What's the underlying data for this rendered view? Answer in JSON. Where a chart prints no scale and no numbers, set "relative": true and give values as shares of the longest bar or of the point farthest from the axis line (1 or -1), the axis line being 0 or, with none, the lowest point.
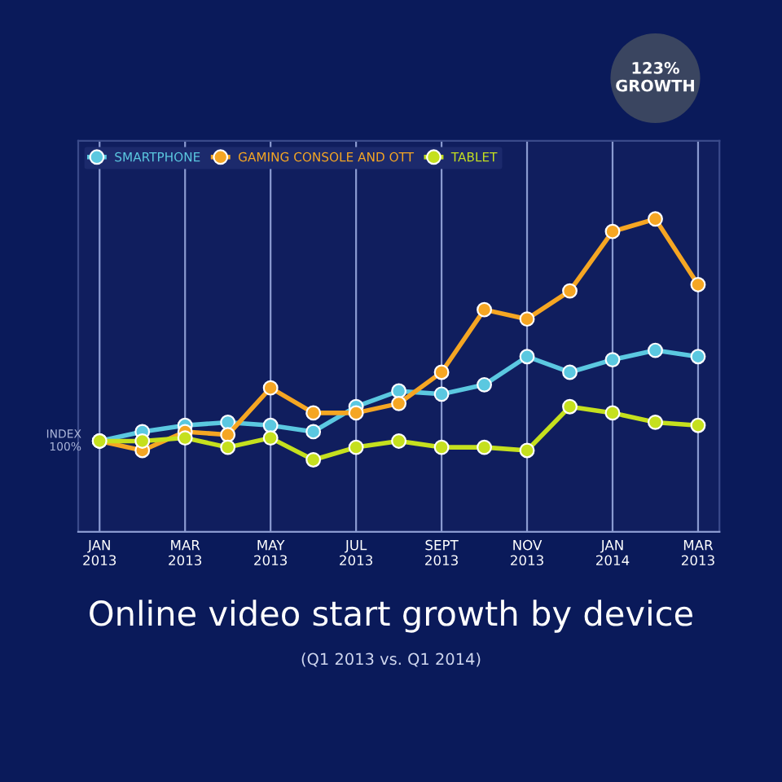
{
  "chart_data": {
    "type": "line",
    "title": "Online video start growth by device",
    "subtitle": "(Q1 2013 vs. Q1 2014)",
    "categories": [
      "JAN\n2013",
      null,
      "MAR\n2013",
      null,
      "MAY\n2013",
      null,
      "JUL\n2013",
      null,
      "SEPT\n2013",
      null,
      "NOV\n2013",
      null,
      "JAN\n2014",
      null,
      "MAR\n2013"
    ],
    "relative": true,
    "series": [
      {
        "name": "SMARTPHONE",
        "color": "#5bc8e0",
        "values": [
          0.29,
          0.32,
          0.34,
          0.35,
          0.34,
          0.32,
          0.4,
          0.45,
          0.44,
          0.47,
          0.56,
          0.51,
          0.55,
          0.58,
          0.56
        ]
      },
      {
        "name": "GAMING CONSOLE AND OTT",
        "color": "#f5a623",
        "values": [
          0.29,
          0.26,
          0.32,
          0.31,
          0.46,
          0.38,
          0.38,
          0.41,
          0.51,
          0.71,
          0.68,
          0.77,
          0.96,
          1,
          0.79
        ]
      },
      {
        "name": "TABLET",
        "color": "#c5e01e",
        "values": [
          0.29,
          0.29,
          0.3,
          0.27,
          0.3,
          0.23,
          0.27,
          0.29,
          0.27,
          0.27,
          0.26,
          0.4,
          0.38,
          0.35,
          0.34
        ]
      }
    ],
    "annotations": [
      "INDEX\n100%",
      "123%\nGROWTH"
    ],
    "grid": "x",
    "legend": "top left",
    "marker": "circle",
    "line_style": "solid"
  }
}
